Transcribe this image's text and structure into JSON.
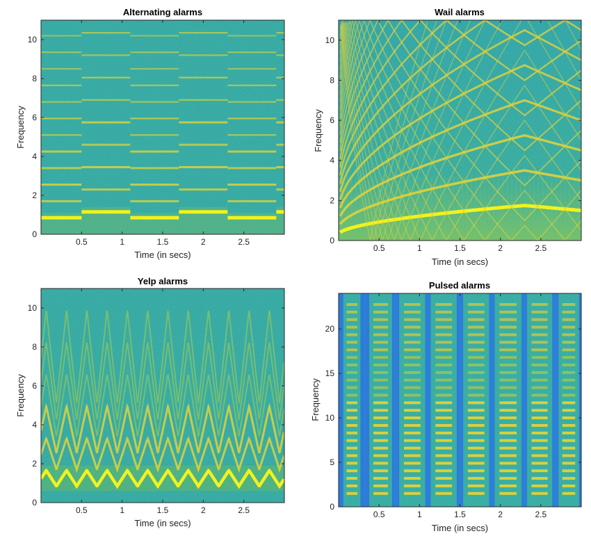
{
  "figure": {
    "colors": {
      "background": "#2ba4a0",
      "mid": "#80c05a",
      "line": "#e0d23a",
      "hot": "#f2f21e",
      "dark": "#3a4bd0",
      "mediumBlue": "#2e7fd8"
    }
  },
  "chart_data": [
    {
      "type": "heatmap",
      "id": "alternating",
      "title": "Alternating alarms",
      "xlabel": "Time (in secs)",
      "ylabel": "Frequency",
      "xlim": [
        0,
        3
      ],
      "ylim": [
        0,
        11
      ],
      "xticks": [
        0.5,
        1,
        1.5,
        2,
        2.5
      ],
      "xtick_labels": [
        "0.5",
        "1",
        "1.5",
        "2",
        "2.5"
      ],
      "yticks": [
        0,
        2,
        4,
        6,
        8,
        10
      ],
      "ytick_labels": [
        "0",
        "2",
        "4",
        "6",
        "8",
        "10"
      ],
      "segments": [
        {
          "t0": 0.0,
          "t1": 0.5,
          "fundamental": 0.85
        },
        {
          "t0": 0.5,
          "t1": 1.1,
          "fundamental": 1.15
        },
        {
          "t0": 1.1,
          "t1": 1.7,
          "fundamental": 0.85
        },
        {
          "t0": 1.7,
          "t1": 2.3,
          "fundamental": 1.15
        },
        {
          "t0": 2.3,
          "t1": 2.9,
          "fundamental": 0.85
        },
        {
          "t0": 2.9,
          "t1": 3.0,
          "fundamental": 1.15
        }
      ]
    },
    {
      "type": "heatmap",
      "id": "wail",
      "title": "Wail alarms",
      "xlabel": "Time (in secs)",
      "ylabel": "Frequency",
      "xlim": [
        0,
        3
      ],
      "ylim": [
        0,
        11
      ],
      "xticks": [
        0.5,
        1,
        1.5,
        2,
        2.5
      ],
      "xtick_labels": [
        "0.5",
        "1",
        "1.5",
        "2",
        "2.5"
      ],
      "yticks": [
        0,
        2,
        4,
        6,
        8,
        10
      ],
      "ytick_labels": [
        "0",
        "2",
        "4",
        "6",
        "8",
        "10"
      ],
      "sweep": {
        "f_start": 0.3,
        "f_peak": 1.75,
        "t_peak": 2.3,
        "f_end": 1.5
      }
    },
    {
      "type": "heatmap",
      "id": "yelp",
      "title": "Yelp alarms",
      "xlabel": "Time (in secs)",
      "ylabel": "Frequency",
      "xlim": [
        0,
        3
      ],
      "ylim": [
        0,
        11
      ],
      "xticks": [
        0.5,
        1,
        1.5,
        2,
        2.5
      ],
      "xtick_labels": [
        "0.5",
        "1",
        "1.5",
        "2",
        "2.5"
      ],
      "yticks": [
        0,
        2,
        4,
        6,
        8,
        10
      ],
      "ytick_labels": [
        "0",
        "2",
        "4",
        "6",
        "8",
        "10"
      ],
      "triangle": {
        "period": 0.25,
        "f_low": 0.85,
        "f_high": 1.65,
        "harmonics": 4
      }
    },
    {
      "type": "heatmap",
      "id": "pulsed",
      "title": "Pulsed alarms",
      "xlabel": "Time (in secs)",
      "ylabel": "Frequency",
      "xlim": [
        0,
        3
      ],
      "ylim": [
        0,
        24
      ],
      "xticks": [
        0.5,
        1,
        1.5,
        2,
        2.5
      ],
      "xtick_labels": [
        "0.5",
        "1",
        "1.5",
        "2",
        "2.5"
      ],
      "yticks": [
        0,
        5,
        10,
        15,
        20
      ],
      "ytick_labels": [
        "0",
        "5",
        "10",
        "15",
        "20"
      ],
      "pulse_windows": [
        [
          0.06,
          0.27
        ],
        [
          0.38,
          0.66
        ],
        [
          0.75,
          1.07
        ],
        [
          1.14,
          1.46
        ],
        [
          1.54,
          1.86
        ],
        [
          1.93,
          2.26
        ],
        [
          2.33,
          2.64
        ],
        [
          2.72,
          2.97
        ]
      ]
    }
  ]
}
